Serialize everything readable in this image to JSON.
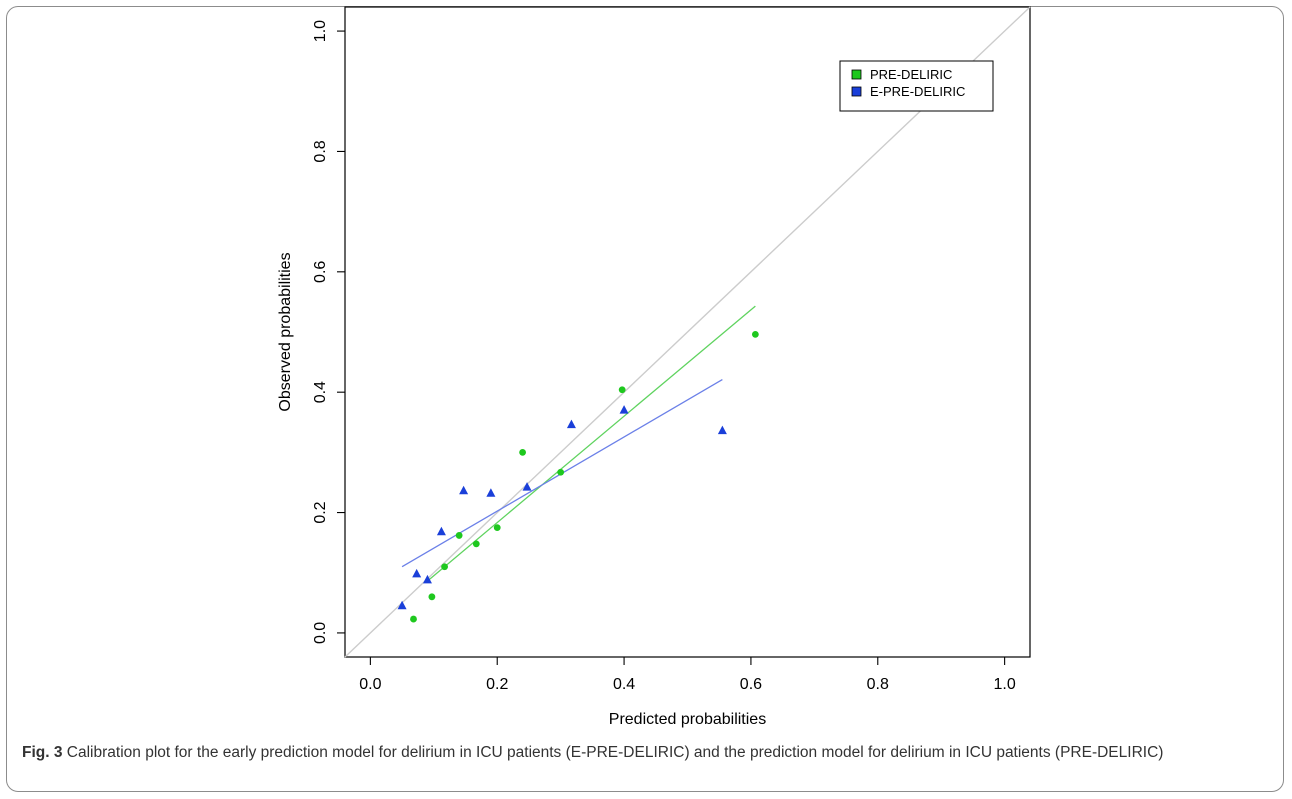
{
  "figure": {
    "label": "Fig. 3",
    "caption": "Calibration plot for the early prediction model for delirium in ICU patients (E-PRE-DELIRIC) and the prediction model for delirium in ICU patients (PRE-DELIRIC)"
  },
  "chart_data": {
    "type": "scatter",
    "xlabel": "Predicted probabilities",
    "ylabel": "Observed probabilities",
    "xlim": [
      -0.04,
      1.04
    ],
    "ylim": [
      -0.04,
      1.04
    ],
    "xticks": [
      "0.0",
      "0.2",
      "0.4",
      "0.6",
      "0.8",
      "1.0"
    ],
    "yticks": [
      "0.0",
      "0.2",
      "0.4",
      "0.6",
      "0.8",
      "1.0"
    ],
    "grid": false,
    "legend_position": "top-right",
    "reference_line": {
      "from": [
        -0.04,
        -0.04
      ],
      "to": [
        1.04,
        1.04
      ],
      "color": "#cccccc"
    },
    "series": [
      {
        "name": "PRE-DELIRIC",
        "marker": "circle",
        "color": "#1ec81e",
        "line_color": "#5fd35f",
        "x": [
          0.068,
          0.097,
          0.117,
          0.14,
          0.167,
          0.2,
          0.24,
          0.3,
          0.397,
          0.607
        ],
        "y": [
          0.023,
          0.06,
          0.11,
          0.162,
          0.148,
          0.175,
          0.3,
          0.267,
          0.404,
          0.496
        ],
        "fit": {
          "from": [
            0.092,
            0.088
          ],
          "to": [
            0.607,
            0.543
          ]
        }
      },
      {
        "name": "E-PRE-DELIRIC",
        "marker": "triangle",
        "color": "#1a3fd9",
        "line_color": "#6b80e8",
        "x": [
          0.05,
          0.073,
          0.09,
          0.112,
          0.147,
          0.19,
          0.247,
          0.317,
          0.4,
          0.555
        ],
        "y": [
          0.045,
          0.098,
          0.088,
          0.168,
          0.236,
          0.232,
          0.242,
          0.346,
          0.37,
          0.336
        ],
        "fit": {
          "from": [
            0.05,
            0.11
          ],
          "to": [
            0.555,
            0.421
          ]
        }
      }
    ]
  }
}
